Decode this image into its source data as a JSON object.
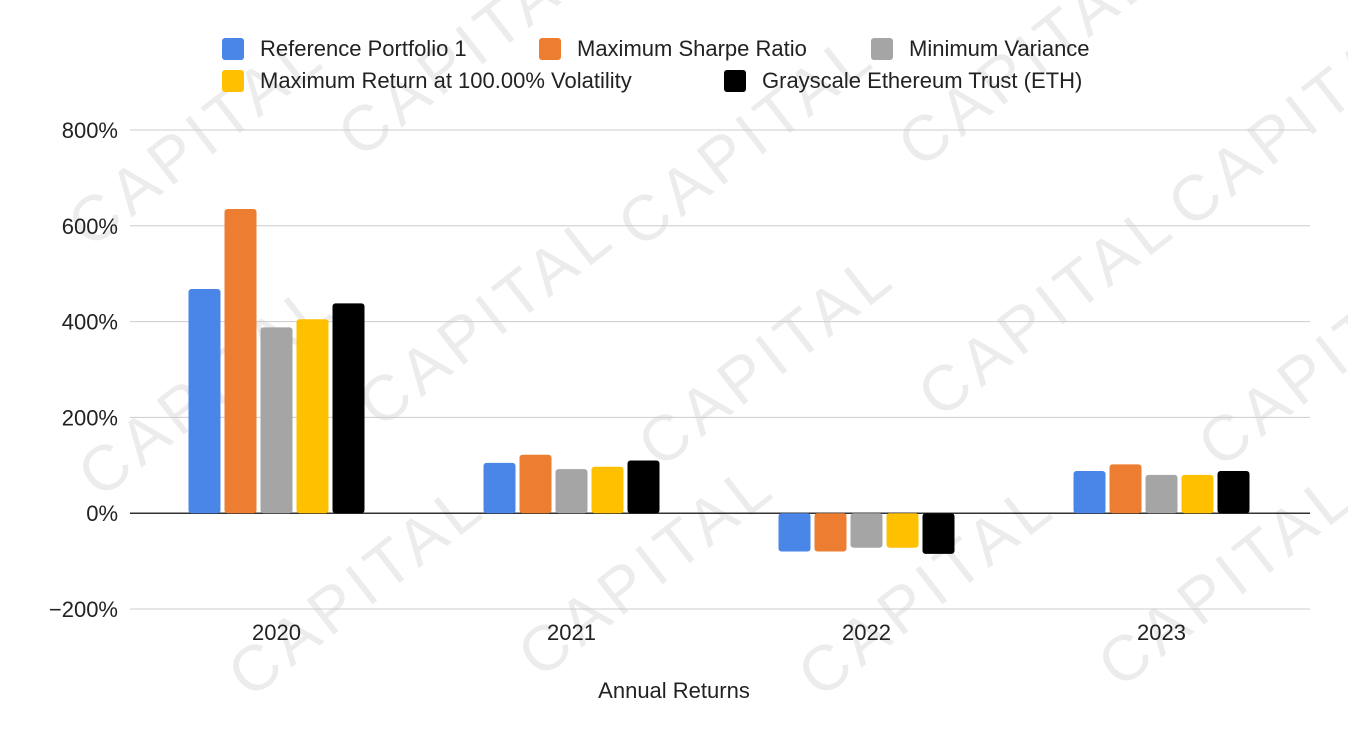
{
  "watermark": "CAPITAL",
  "chart_data": {
    "type": "bar",
    "categories": [
      "2020",
      "2021",
      "2022",
      "2023"
    ],
    "series": [
      {
        "name": "Reference Portfolio 1",
        "color": "#4a86e8",
        "values": [
          468,
          105,
          -80,
          88
        ]
      },
      {
        "name": "Maximum Sharpe Ratio",
        "color": "#ed7d31",
        "values": [
          635,
          122,
          -80,
          102
        ]
      },
      {
        "name": "Minimum Variance",
        "color": "#a5a5a5",
        "values": [
          388,
          92,
          -72,
          80
        ]
      },
      {
        "name": "Maximum Return at 100.00% Volatility",
        "color": "#ffc000",
        "values": [
          405,
          97,
          -72,
          80
        ]
      },
      {
        "name": "Grayscale Ethereum Trust (ETH)",
        "color": "#000000",
        "values": [
          438,
          110,
          -85,
          88
        ]
      }
    ],
    "yticks": [
      "800%",
      "600%",
      "400%",
      "200%",
      "0%",
      "−200%"
    ],
    "ytick_values": [
      800,
      600,
      400,
      200,
      0,
      -200
    ],
    "ylim": [
      -200,
      800
    ],
    "xlabel": "Annual Returns",
    "grid": true,
    "legend_position": "top"
  }
}
